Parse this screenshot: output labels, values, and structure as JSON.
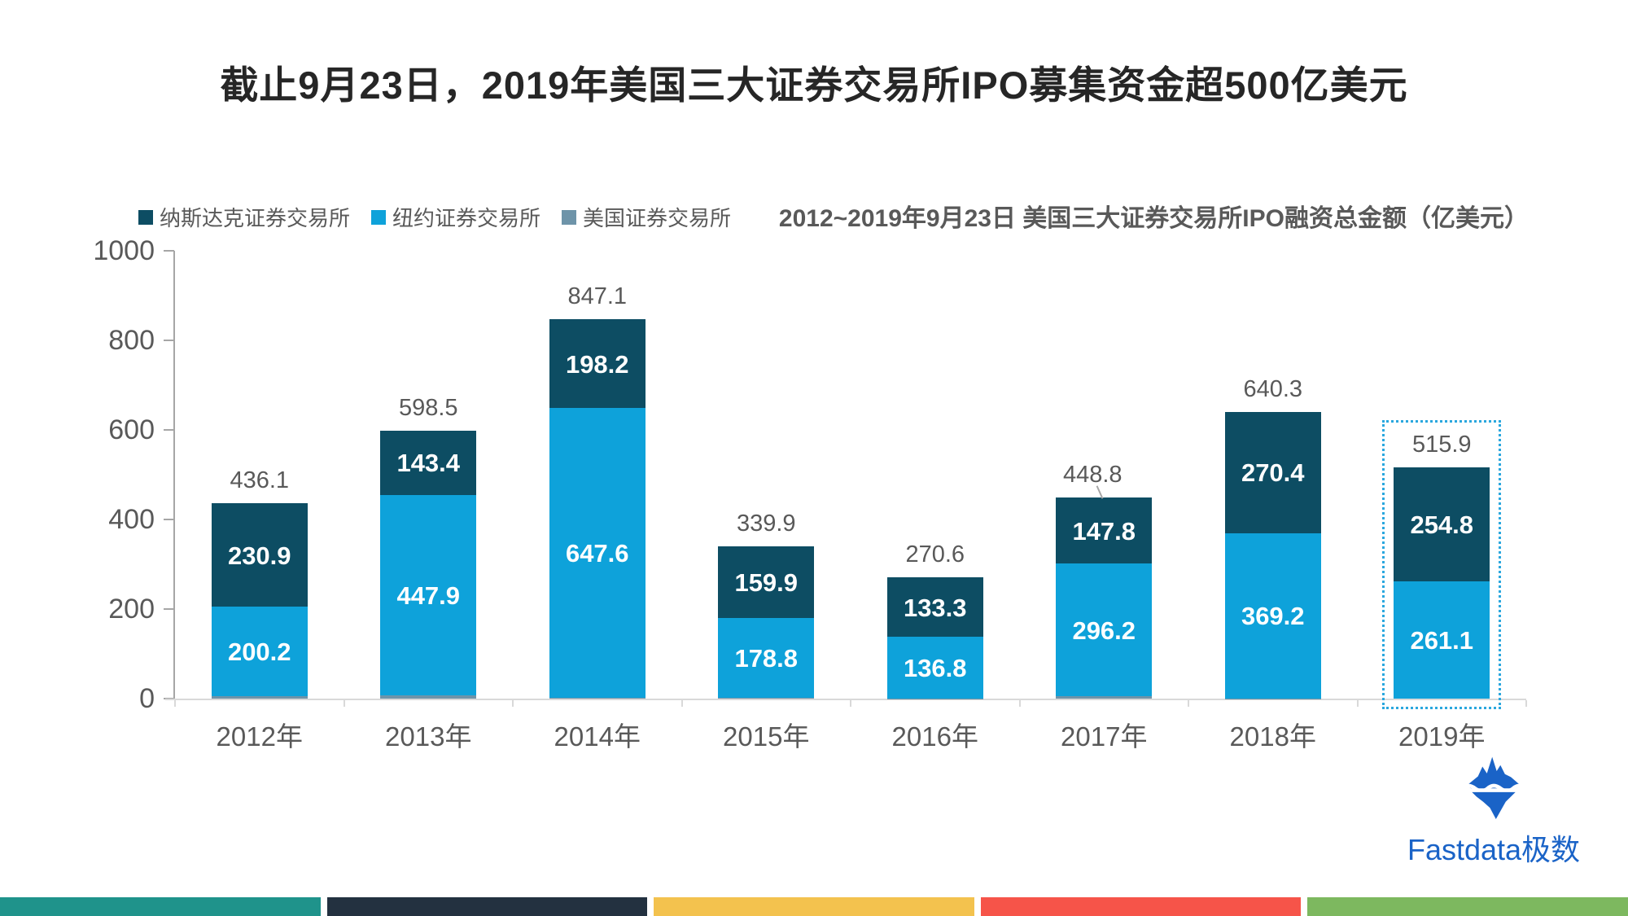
{
  "title": "截止9月23日，2019年美国三大证券交易所IPO募集资金超500亿美元",
  "chart_subtitle": "2012~2019年9月23日 美国三大证券交易所IPO融资总金额（亿美元）",
  "legend": [
    {
      "label": "纳斯达克证券交易所",
      "color": "#0d4d63"
    },
    {
      "label": "纽约证券交易所",
      "color": "#0ea2da"
    },
    {
      "label": "美国证券交易所",
      "color": "#6e94a9"
    }
  ],
  "chart_data": {
    "type": "bar",
    "stacked": true,
    "title": "2012~2019年9月23日 美国三大证券交易所IPO融资总金额（亿美元）",
    "categories": [
      "2012年",
      "2013年",
      "2014年",
      "2015年",
      "2016年",
      "2017年",
      "2018年",
      "2019年"
    ],
    "series": [
      {
        "key": "amex",
        "name": "美国证券交易所",
        "color": "#6e94a9",
        "show_labels": false,
        "derived_from_totals": true,
        "values": [
          5.0,
          7.2,
          1.3,
          1.2,
          0.5,
          4.8,
          0.7,
          0.0
        ]
      },
      {
        "key": "nyse",
        "name": "纽约证券交易所",
        "color": "#0ea2da",
        "show_labels": true,
        "values": [
          200.2,
          447.9,
          647.6,
          178.8,
          136.8,
          296.2,
          369.2,
          261.1
        ]
      },
      {
        "key": "nasdaq",
        "name": "纳斯达克证券交易所",
        "color": "#0d4d63",
        "show_labels": true,
        "values": [
          230.9,
          143.4,
          198.2,
          159.9,
          133.3,
          147.8,
          270.4,
          254.8
        ]
      }
    ],
    "totals": [
      436.1,
      598.5,
      847.1,
      339.9,
      270.6,
      448.8,
      640.3,
      515.9
    ],
    "yticks": [
      0,
      200,
      400,
      600,
      800,
      1000
    ],
    "ylim": [
      0,
      1000
    ],
    "grid": false,
    "legend_position": "top-left",
    "highlight_category": "2019年",
    "leader_line_category": "2017年"
  },
  "colors": {
    "axis_dark": "#a6a6a6",
    "axis_light": "#d9d9d9",
    "text_grey": "#595959",
    "highlight_border": "#2aa7de"
  },
  "branding": {
    "logo_text": "Fastdata极数",
    "logo_color": "#1a63c7"
  },
  "footer_colors": [
    "#1f938b",
    "#233140",
    "#f3c24e",
    "#f65449",
    "#7db85f"
  ]
}
